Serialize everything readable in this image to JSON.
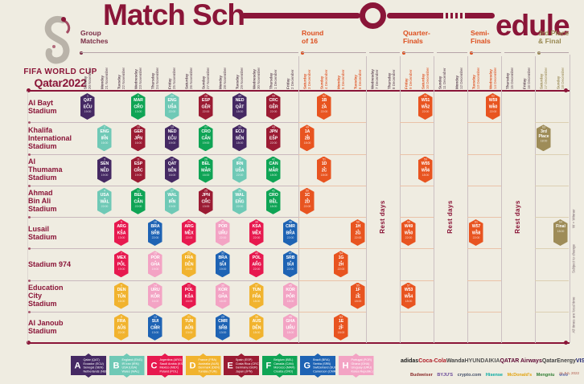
{
  "title": {
    "left": "Match Sch",
    "right": "edule"
  },
  "brand": {
    "line1": "FIFA WORLD CUP",
    "line2": "Qatar2022"
  },
  "sections": [
    {
      "id": "group",
      "lines": [
        "Group",
        "Matches"
      ],
      "color": "#7B2D46"
    },
    {
      "id": "r16",
      "lines": [
        "Round",
        "of 16"
      ],
      "color": "#DD4E1E"
    },
    {
      "id": "qf",
      "lines": [
        "Quarter-",
        "Finals"
      ],
      "color": "#DD4E1E"
    },
    {
      "id": "sf",
      "lines": [
        "Semi-",
        "Finals"
      ],
      "color": "#DD4E1E"
    },
    {
      "id": "final",
      "lines": [
        "3rd Place",
        "& Final"
      ],
      "color": "#9A8A55"
    }
  ],
  "tones": {
    "group": "#5E4554",
    "ko": "#DD4E1E",
    "final": "#9A8A55"
  },
  "columns": [
    {
      "day": "Sunday",
      "date": "20 November",
      "tone": "group"
    },
    {
      "day": "Monday",
      "date": "21 November",
      "tone": "group"
    },
    {
      "day": "Tuesday",
      "date": "22 November",
      "tone": "group"
    },
    {
      "day": "Wednesday",
      "date": "23 November",
      "tone": "group"
    },
    {
      "day": "Thursday",
      "date": "24 November",
      "tone": "group"
    },
    {
      "day": "Friday",
      "date": "25 November",
      "tone": "group"
    },
    {
      "day": "Saturday",
      "date": "26 November",
      "tone": "group"
    },
    {
      "day": "Sunday",
      "date": "27 November",
      "tone": "group"
    },
    {
      "day": "Monday",
      "date": "28 November",
      "tone": "group"
    },
    {
      "day": "Tuesday",
      "date": "29 November",
      "tone": "group"
    },
    {
      "day": "Wednesday",
      "date": "30 November",
      "tone": "group"
    },
    {
      "day": "Thursday",
      "date": "1 December",
      "tone": "group"
    },
    {
      "day": "Friday",
      "date": "2 December",
      "tone": "group"
    },
    {
      "day": "Saturday",
      "date": "3 December",
      "tone": "ko"
    },
    {
      "day": "Sunday",
      "date": "4 December",
      "tone": "ko"
    },
    {
      "day": "Monday",
      "date": "5 December",
      "tone": "ko"
    },
    {
      "day": "Tuesday",
      "date": "6 December",
      "tone": "ko"
    },
    {
      "day": "Wednesday",
      "date": "7 December",
      "tone": "group"
    },
    {
      "day": "Thursday",
      "date": "8 December",
      "tone": "group"
    },
    {
      "day": "Friday",
      "date": "9 December",
      "tone": "ko"
    },
    {
      "day": "Saturday",
      "date": "10 December",
      "tone": "ko"
    },
    {
      "day": "Sunday",
      "date": "11 December",
      "tone": "group"
    },
    {
      "day": "Monday",
      "date": "12 December",
      "tone": "group"
    },
    {
      "day": "Tuesday",
      "date": "13 December",
      "tone": "ko"
    },
    {
      "day": "Wednesday",
      "date": "14 December",
      "tone": "ko"
    },
    {
      "day": "Thursday",
      "date": "15 December",
      "tone": "group"
    },
    {
      "day": "Friday",
      "date": "16 December",
      "tone": "group"
    },
    {
      "day": "Saturday",
      "date": "17 December",
      "tone": "final"
    },
    {
      "day": "Sunday",
      "date": "18 December",
      "tone": "final"
    }
  ],
  "stadiums": [
    {
      "lines": [
        "Al Bayt",
        "Stadium"
      ]
    },
    {
      "lines": [
        "Khalifa",
        "International",
        "Stadium"
      ]
    },
    {
      "lines": [
        "Al",
        "Thumama",
        "Stadium"
      ]
    },
    {
      "lines": [
        "Ahmad",
        "Bin Ali",
        "Stadium"
      ]
    },
    {
      "lines": [
        "Lusail",
        "Stadium"
      ]
    },
    {
      "lines": [
        "Stadium 974"
      ]
    },
    {
      "lines": [
        "Education",
        "City",
        "Stadium"
      ]
    },
    {
      "lines": [
        "Al Janoub",
        "Stadium"
      ]
    }
  ],
  "groups": {
    "A": {
      "color": "#452963"
    },
    "B": {
      "color": "#6FC9B6"
    },
    "C": {
      "color": "#E7194F"
    },
    "D": {
      "color": "#F1B32E"
    },
    "E": {
      "color": "#9B1B33"
    },
    "F": {
      "color": "#0FA455"
    },
    "G": {
      "color": "#1E63B4"
    },
    "H": {
      "color": "#F3A3C4"
    }
  },
  "badge_colors": {
    "knockout": "#E85420",
    "final": "#9E8C58"
  },
  "rest_label": "Rest days",
  "matches": [
    {
      "row": 0,
      "col": 0,
      "group": "A",
      "num": "1",
      "home": "QAT",
      "away": "ECU",
      "time": "19:00"
    },
    {
      "row": 0,
      "col": 3,
      "group": "F",
      "num": "9",
      "home": "MAR",
      "away": "CRO",
      "time": "13:00"
    },
    {
      "row": 0,
      "col": 5,
      "group": "B",
      "num": "20",
      "home": "ENG",
      "away": "USA",
      "time": "22:00"
    },
    {
      "row": 0,
      "col": 7,
      "group": "E",
      "num": "28",
      "home": "ESP",
      "away": "GER",
      "time": "22:00"
    },
    {
      "row": 0,
      "col": 9,
      "group": "A",
      "num": "34",
      "home": "NED",
      "away": "QAT",
      "time": "18:00"
    },
    {
      "row": 0,
      "col": 11,
      "group": "E",
      "num": "44",
      "home": "CRC",
      "away": "GER",
      "time": "22:00"
    },
    {
      "row": 0,
      "col": 14,
      "stage": "r16",
      "num": "52",
      "home": "1B",
      "away": "2A",
      "time": "22:00"
    },
    {
      "row": 0,
      "col": 20,
      "stage": "qf",
      "num": "60",
      "home": "W51",
      "away": "W52",
      "time": "22:00"
    },
    {
      "row": 0,
      "col": 24,
      "stage": "sf",
      "num": "62",
      "home": "W59",
      "away": "W60",
      "time": "22:00"
    },
    {
      "row": 1,
      "col": 1,
      "group": "B",
      "num": "2",
      "home": "ENG",
      "away": "IRN",
      "time": "16:00"
    },
    {
      "row": 1,
      "col": 3,
      "group": "E",
      "num": "10",
      "home": "GER",
      "away": "JPN",
      "time": "16:00"
    },
    {
      "row": 1,
      "col": 5,
      "group": "A",
      "num": "19",
      "home": "NED",
      "away": "ECU",
      "time": "19:00"
    },
    {
      "row": 1,
      "col": 7,
      "group": "F",
      "num": "27",
      "home": "CRO",
      "away": "CAN",
      "time": "19:00"
    },
    {
      "row": 1,
      "col": 9,
      "group": "A",
      "num": "33",
      "home": "ECU",
      "away": "SEN",
      "time": "18:00"
    },
    {
      "row": 1,
      "col": 11,
      "group": "E",
      "num": "43",
      "home": "JPN",
      "away": "ESP",
      "time": "22:00"
    },
    {
      "row": 1,
      "col": 13,
      "stage": "r16",
      "num": "49",
      "home": "1A",
      "away": "2B",
      "time": "18:00"
    },
    {
      "row": 1,
      "col": 27,
      "stage": "final",
      "num": "63",
      "label": [
        "3rd",
        "Place"
      ],
      "time": "18:00"
    },
    {
      "row": 2,
      "col": 1,
      "group": "A",
      "num": "3",
      "home": "SEN",
      "away": "NED",
      "time": "19:00"
    },
    {
      "row": 2,
      "col": 3,
      "group": "E",
      "num": "11",
      "home": "ESP",
      "away": "CRC",
      "time": "19:00"
    },
    {
      "row": 2,
      "col": 5,
      "group": "A",
      "num": "18",
      "home": "QAT",
      "away": "SEN",
      "time": "16:00"
    },
    {
      "row": 2,
      "col": 7,
      "group": "F",
      "num": "26",
      "home": "BEL",
      "away": "MAR",
      "time": "16:00"
    },
    {
      "row": 2,
      "col": 9,
      "group": "B",
      "num": "35",
      "home": "IRN",
      "away": "USA",
      "time": "22:00"
    },
    {
      "row": 2,
      "col": 11,
      "group": "F",
      "num": "42",
      "home": "CAN",
      "away": "MAR",
      "time": "18:00"
    },
    {
      "row": 2,
      "col": 14,
      "stage": "r16",
      "num": "51",
      "home": "1D",
      "away": "2C",
      "time": "18:00"
    },
    {
      "row": 2,
      "col": 20,
      "stage": "qf",
      "num": "59",
      "home": "W55",
      "away": "W56",
      "time": "18:00"
    },
    {
      "row": 3,
      "col": 1,
      "group": "B",
      "num": "4",
      "home": "USA",
      "away": "WAL",
      "time": "22:00"
    },
    {
      "row": 3,
      "col": 3,
      "group": "F",
      "num": "12",
      "home": "BEL",
      "away": "CAN",
      "time": "22:00"
    },
    {
      "row": 3,
      "col": 5,
      "group": "B",
      "num": "17",
      "home": "WAL",
      "away": "IRN",
      "time": "13:00"
    },
    {
      "row": 3,
      "col": 7,
      "group": "E",
      "num": "25",
      "home": "JPN",
      "away": "CRC",
      "time": "13:00"
    },
    {
      "row": 3,
      "col": 9,
      "group": "B",
      "num": "36",
      "home": "WAL",
      "away": "ENG",
      "time": "22:00"
    },
    {
      "row": 3,
      "col": 11,
      "group": "F",
      "num": "41",
      "home": "CRO",
      "away": "BEL",
      "time": "18:00"
    },
    {
      "row": 3,
      "col": 13,
      "stage": "r16",
      "num": "50",
      "home": "1C",
      "away": "2D",
      "time": "22:00"
    },
    {
      "row": 4,
      "col": 2,
      "group": "C",
      "num": "5",
      "home": "ARG",
      "away": "KSA",
      "time": "13:00"
    },
    {
      "row": 4,
      "col": 4,
      "group": "G",
      "num": "16",
      "home": "BRA",
      "away": "SRB",
      "time": "22:00"
    },
    {
      "row": 4,
      "col": 6,
      "group": "C",
      "num": "24",
      "home": "ARG",
      "away": "MEX",
      "time": "22:00"
    },
    {
      "row": 4,
      "col": 8,
      "group": "H",
      "num": "32",
      "home": "POR",
      "away": "URU",
      "time": "22:00"
    },
    {
      "row": 4,
      "col": 10,
      "group": "C",
      "num": "39",
      "home": "KSA",
      "away": "MEX",
      "time": "22:00"
    },
    {
      "row": 4,
      "col": 12,
      "group": "G",
      "num": "48",
      "home": "CMR",
      "away": "BRA",
      "time": "22:00"
    },
    {
      "row": 4,
      "col": 16,
      "stage": "r16",
      "num": "56",
      "home": "1H",
      "away": "2G",
      "time": "22:00"
    },
    {
      "row": 4,
      "col": 19,
      "stage": "qf",
      "num": "58",
      "home": "W49",
      "away": "W50",
      "time": "22:00"
    },
    {
      "row": 4,
      "col": 23,
      "stage": "sf",
      "num": "61",
      "home": "W57",
      "away": "W58",
      "time": "22:00"
    },
    {
      "row": 4,
      "col": 28,
      "stage": "final",
      "num": "64",
      "label": [
        "Final"
      ],
      "time": "18:00"
    },
    {
      "row": 5,
      "col": 2,
      "group": "C",
      "num": "7",
      "home": "MEX",
      "away": "POL",
      "time": "19:00"
    },
    {
      "row": 5,
      "col": 4,
      "group": "H",
      "num": "15",
      "home": "POR",
      "away": "GHA",
      "time": "19:00"
    },
    {
      "row": 5,
      "col": 6,
      "group": "D",
      "num": "23",
      "home": "FRA",
      "away": "DEN",
      "time": "19:00"
    },
    {
      "row": 5,
      "col": 8,
      "group": "G",
      "num": "31",
      "home": "BRA",
      "away": "SUI",
      "time": "19:00"
    },
    {
      "row": 5,
      "col": 10,
      "group": "C",
      "num": "40",
      "home": "POL",
      "away": "ARG",
      "time": "22:00"
    },
    {
      "row": 5,
      "col": 12,
      "group": "G",
      "num": "47",
      "home": "SRB",
      "away": "SUI",
      "time": "22:00"
    },
    {
      "row": 5,
      "col": 15,
      "stage": "r16",
      "num": "54",
      "home": "1G",
      "away": "2H",
      "time": "22:00"
    },
    {
      "row": 6,
      "col": 2,
      "group": "D",
      "num": "6",
      "home": "DEN",
      "away": "TUN",
      "time": "16:00"
    },
    {
      "row": 6,
      "col": 4,
      "group": "H",
      "num": "14",
      "home": "URU",
      "away": "KOR",
      "time": "16:00"
    },
    {
      "row": 6,
      "col": 6,
      "group": "C",
      "num": "22",
      "home": "POL",
      "away": "KSA",
      "time": "16:00"
    },
    {
      "row": 6,
      "col": 8,
      "group": "H",
      "num": "30",
      "home": "KOR",
      "away": "GHA",
      "time": "16:00"
    },
    {
      "row": 6,
      "col": 10,
      "group": "D",
      "num": "37",
      "home": "TUN",
      "away": "FRA",
      "time": "18:00"
    },
    {
      "row": 6,
      "col": 12,
      "group": "H",
      "num": "45",
      "home": "KOR",
      "away": "POR",
      "time": "18:00"
    },
    {
      "row": 6,
      "col": 16,
      "stage": "r16",
      "num": "55",
      "home": "1F",
      "away": "2E",
      "time": "18:00"
    },
    {
      "row": 6,
      "col": 19,
      "stage": "qf",
      "num": "57",
      "home": "W53",
      "away": "W54",
      "time": "18:00"
    },
    {
      "row": 7,
      "col": 2,
      "group": "D",
      "num": "8",
      "home": "FRA",
      "away": "AUS",
      "time": "22:00"
    },
    {
      "row": 7,
      "col": 4,
      "group": "G",
      "num": "13",
      "home": "SUI",
      "away": "CMR",
      "time": "13:00"
    },
    {
      "row": 7,
      "col": 6,
      "group": "D",
      "num": "21",
      "home": "TUN",
      "away": "AUS",
      "time": "13:00"
    },
    {
      "row": 7,
      "col": 8,
      "group": "G",
      "num": "29",
      "home": "CMR",
      "away": "SRB",
      "time": "13:00"
    },
    {
      "row": 7,
      "col": 10,
      "group": "D",
      "num": "38",
      "home": "AUS",
      "away": "DEN",
      "time": "18:00"
    },
    {
      "row": 7,
      "col": 12,
      "group": "H",
      "num": "46",
      "home": "GHA",
      "away": "URU",
      "time": "18:00"
    },
    {
      "row": 7,
      "col": 15,
      "stage": "r16",
      "num": "53",
      "home": "1E",
      "away": "2F",
      "time": "18:00"
    }
  ],
  "legend": [
    {
      "letter": "A",
      "color": "#452963",
      "teams": [
        "Qatar (QAT)",
        "Ecuador (ECU)",
        "Senegal (SEN)",
        "Netherlands (NED)"
      ]
    },
    {
      "letter": "B",
      "color": "#6FC9B6",
      "teams": [
        "England (ENG)",
        "IR Iran (IRN)",
        "USA (USA)",
        "Wales (WAL)"
      ]
    },
    {
      "letter": "C",
      "color": "#E7194F",
      "teams": [
        "Argentina (ARG)",
        "Saudi Arabia (KSA)",
        "Mexico (MEX)",
        "Poland (POL)"
      ]
    },
    {
      "letter": "D",
      "color": "#F1B32E",
      "teams": [
        "France (FRA)",
        "Australia (AUS)",
        "Denmark (DEN)",
        "Tunisia (TUN)"
      ]
    },
    {
      "letter": "E",
      "color": "#9B1B33",
      "teams": [
        "Spain (ESP)",
        "Costa Rica (CRC)",
        "Germany (GER)",
        "Japan (JPN)"
      ]
    },
    {
      "letter": "F",
      "color": "#0FA455",
      "teams": [
        "Belgium (BEL)",
        "Canada (CAN)",
        "Morocco (MAR)",
        "Croatia (CRO)"
      ]
    },
    {
      "letter": "G",
      "color": "#1E63B4",
      "teams": [
        "Brazil (BRA)",
        "Serbia (SRB)",
        "Switzerland (SUI)",
        "Cameroon (CMR)"
      ]
    },
    {
      "letter": "H",
      "color": "#F3A3C4",
      "teams": [
        "Portugal (POR)",
        "Ghana (GHA)",
        "Uruguay (URU)",
        "Korea Republic (KOR)"
      ]
    }
  ],
  "notes": [
    "W = Winner",
    "Subject to change",
    "All times are local time"
  ],
  "sponsors": {
    "row1": [
      {
        "name": "adidas",
        "color": "#1a1a1a"
      },
      {
        "name": "Coca-Cola",
        "color": "#B01E29"
      },
      {
        "name": "Wanda",
        "color": "#444444"
      },
      {
        "name": "HYUNDAI",
        "color": "#555555"
      },
      {
        "name": "KIA",
        "color": "#555555"
      },
      {
        "name": "QATAR Airways",
        "color": "#5C0632"
      },
      {
        "name": "QatarEnergy",
        "color": "#444444"
      },
      {
        "name": "VISA",
        "color": "#1A1F71"
      }
    ],
    "row2": [
      {
        "name": "Budweiser",
        "color": "#8a2a2a"
      },
      {
        "name": "BYJU'S",
        "color": "#6a4a9a"
      },
      {
        "name": "crypto.com",
        "color": "#44506a"
      },
      {
        "name": "Hisense",
        "color": "#00A8A0"
      },
      {
        "name": "McDonald's",
        "color": "#E2A310"
      },
      {
        "name": "Mengniu",
        "color": "#2E7D32"
      },
      {
        "name": "vivo",
        "color": "#5566aa"
      }
    ]
  },
  "stamp": "11 JUL 2022"
}
